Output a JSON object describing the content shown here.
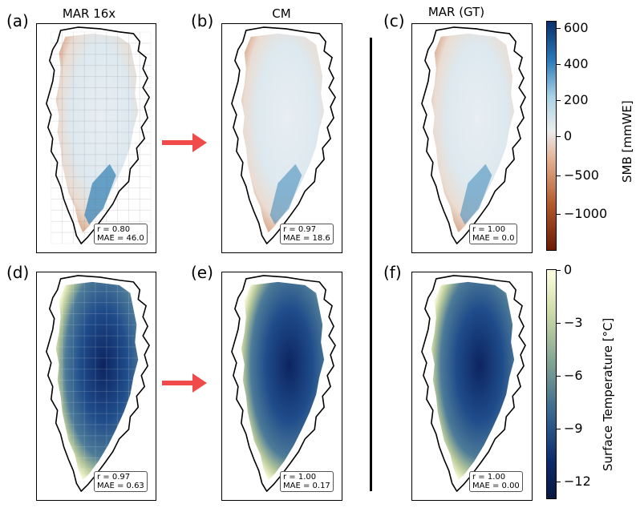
{
  "panels": [
    {
      "label": "(a)",
      "title": "MAR 16x",
      "r": "r = 0.80",
      "mae": "MAE = 46.0"
    },
    {
      "label": "(b)",
      "title": "CM",
      "r": "r = 0.97",
      "mae": "MAE = 18.6"
    },
    {
      "label": "(c)",
      "title": "MAR (GT)",
      "r": "r = 1.00",
      "mae": "MAE = 0.0"
    },
    {
      "label": "(d)",
      "title": "",
      "r": "r = 0.97",
      "mae": "MAE = 0.63"
    },
    {
      "label": "(e)",
      "title": "",
      "r": "r = 1.00",
      "mae": "MAE = 0.17"
    },
    {
      "label": "(f)",
      "title": "",
      "r": "r = 1.00",
      "mae": "MAE = 0.00"
    }
  ],
  "smb_colorbar": {
    "label": "SMB [mmWE]",
    "ticks": [
      "600",
      "400",
      "200",
      "0",
      "−500",
      "−1000"
    ],
    "colors": [
      "#08306b",
      "#2b7bb9",
      "#a9d3e6",
      "#ececec",
      "#e1a987",
      "#b35a2b",
      "#6b1b05"
    ]
  },
  "temp_colorbar": {
    "label": "Surface Temperature [°C]",
    "ticks": [
      "0",
      "−3",
      "−6",
      "−9",
      "−12"
    ],
    "colors": [
      "#ffffe0",
      "#cfdca8",
      "#7da092",
      "#33638f",
      "#0c2a6b",
      "#081840"
    ]
  },
  "arrow_color": "#f04a4a"
}
